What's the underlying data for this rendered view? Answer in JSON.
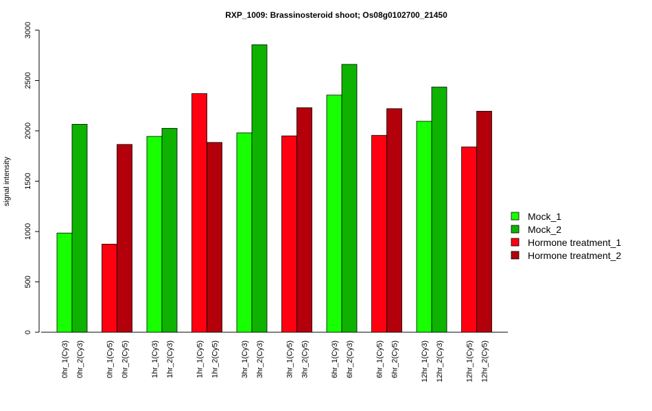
{
  "chart_data": {
    "type": "bar",
    "title": "RXP_1009: Brassinosteroid shoot; Os08g0102700_21450",
    "xlabel": "",
    "ylabel": "signal intensity",
    "ylim": [
      0,
      3000
    ],
    "yticks": [
      0,
      500,
      1000,
      1500,
      2000,
      2500,
      3000
    ],
    "legend_position": "right",
    "grid": false,
    "series_styles": [
      {
        "name": "Mock_1",
        "color": "#17FF00"
      },
      {
        "name": "Mock_2",
        "color": "#0DB300"
      },
      {
        "name": "Hormone treatment_1",
        "color": "#FF0011"
      },
      {
        "name": "Hormone treatment_2",
        "color": "#B3000B"
      }
    ],
    "groups": [
      {
        "bars": [
          {
            "label": "0hr_1(Cy3)",
            "value": 985,
            "series": 0
          },
          {
            "label": "0hr_2(Cy3)",
            "value": 2065,
            "series": 1
          }
        ]
      },
      {
        "bars": [
          {
            "label": "0hr_1(Cy5)",
            "value": 875,
            "series": 2
          },
          {
            "label": "0hr_2(Cy5)",
            "value": 1865,
            "series": 3
          }
        ]
      },
      {
        "bars": [
          {
            "label": "1hr_1(Cy3)",
            "value": 1945,
            "series": 0
          },
          {
            "label": "1hr_2(Cy3)",
            "value": 2025,
            "series": 1
          }
        ]
      },
      {
        "bars": [
          {
            "label": "1hr_1(Cy5)",
            "value": 2370,
            "series": 2
          },
          {
            "label": "1hr_2(Cy5)",
            "value": 1885,
            "series": 3
          }
        ]
      },
      {
        "bars": [
          {
            "label": "3hr_1(Cy3)",
            "value": 1980,
            "series": 0
          },
          {
            "label": "3hr_2(Cy3)",
            "value": 2855,
            "series": 1
          }
        ]
      },
      {
        "bars": [
          {
            "label": "3hr_1(Cy5)",
            "value": 1950,
            "series": 2
          },
          {
            "label": "3hr_2(Cy5)",
            "value": 2230,
            "series": 3
          }
        ]
      },
      {
        "bars": [
          {
            "label": "6hr_1(Cy3)",
            "value": 2355,
            "series": 0
          },
          {
            "label": "6hr_2(Cy3)",
            "value": 2660,
            "series": 1
          }
        ]
      },
      {
        "bars": [
          {
            "label": "6hr_1(Cy5)",
            "value": 1955,
            "series": 2
          },
          {
            "label": "6hr_2(Cy5)",
            "value": 2220,
            "series": 3
          }
        ]
      },
      {
        "bars": [
          {
            "label": "12hr_1(Cy3)",
            "value": 2095,
            "series": 0
          },
          {
            "label": "12hr_2(Cy3)",
            "value": 2435,
            "series": 1
          }
        ]
      },
      {
        "bars": [
          {
            "label": "12hr_1(Cy5)",
            "value": 1840,
            "series": 2
          },
          {
            "label": "12hr_2(Cy5)",
            "value": 2195,
            "series": 3
          }
        ]
      }
    ]
  }
}
